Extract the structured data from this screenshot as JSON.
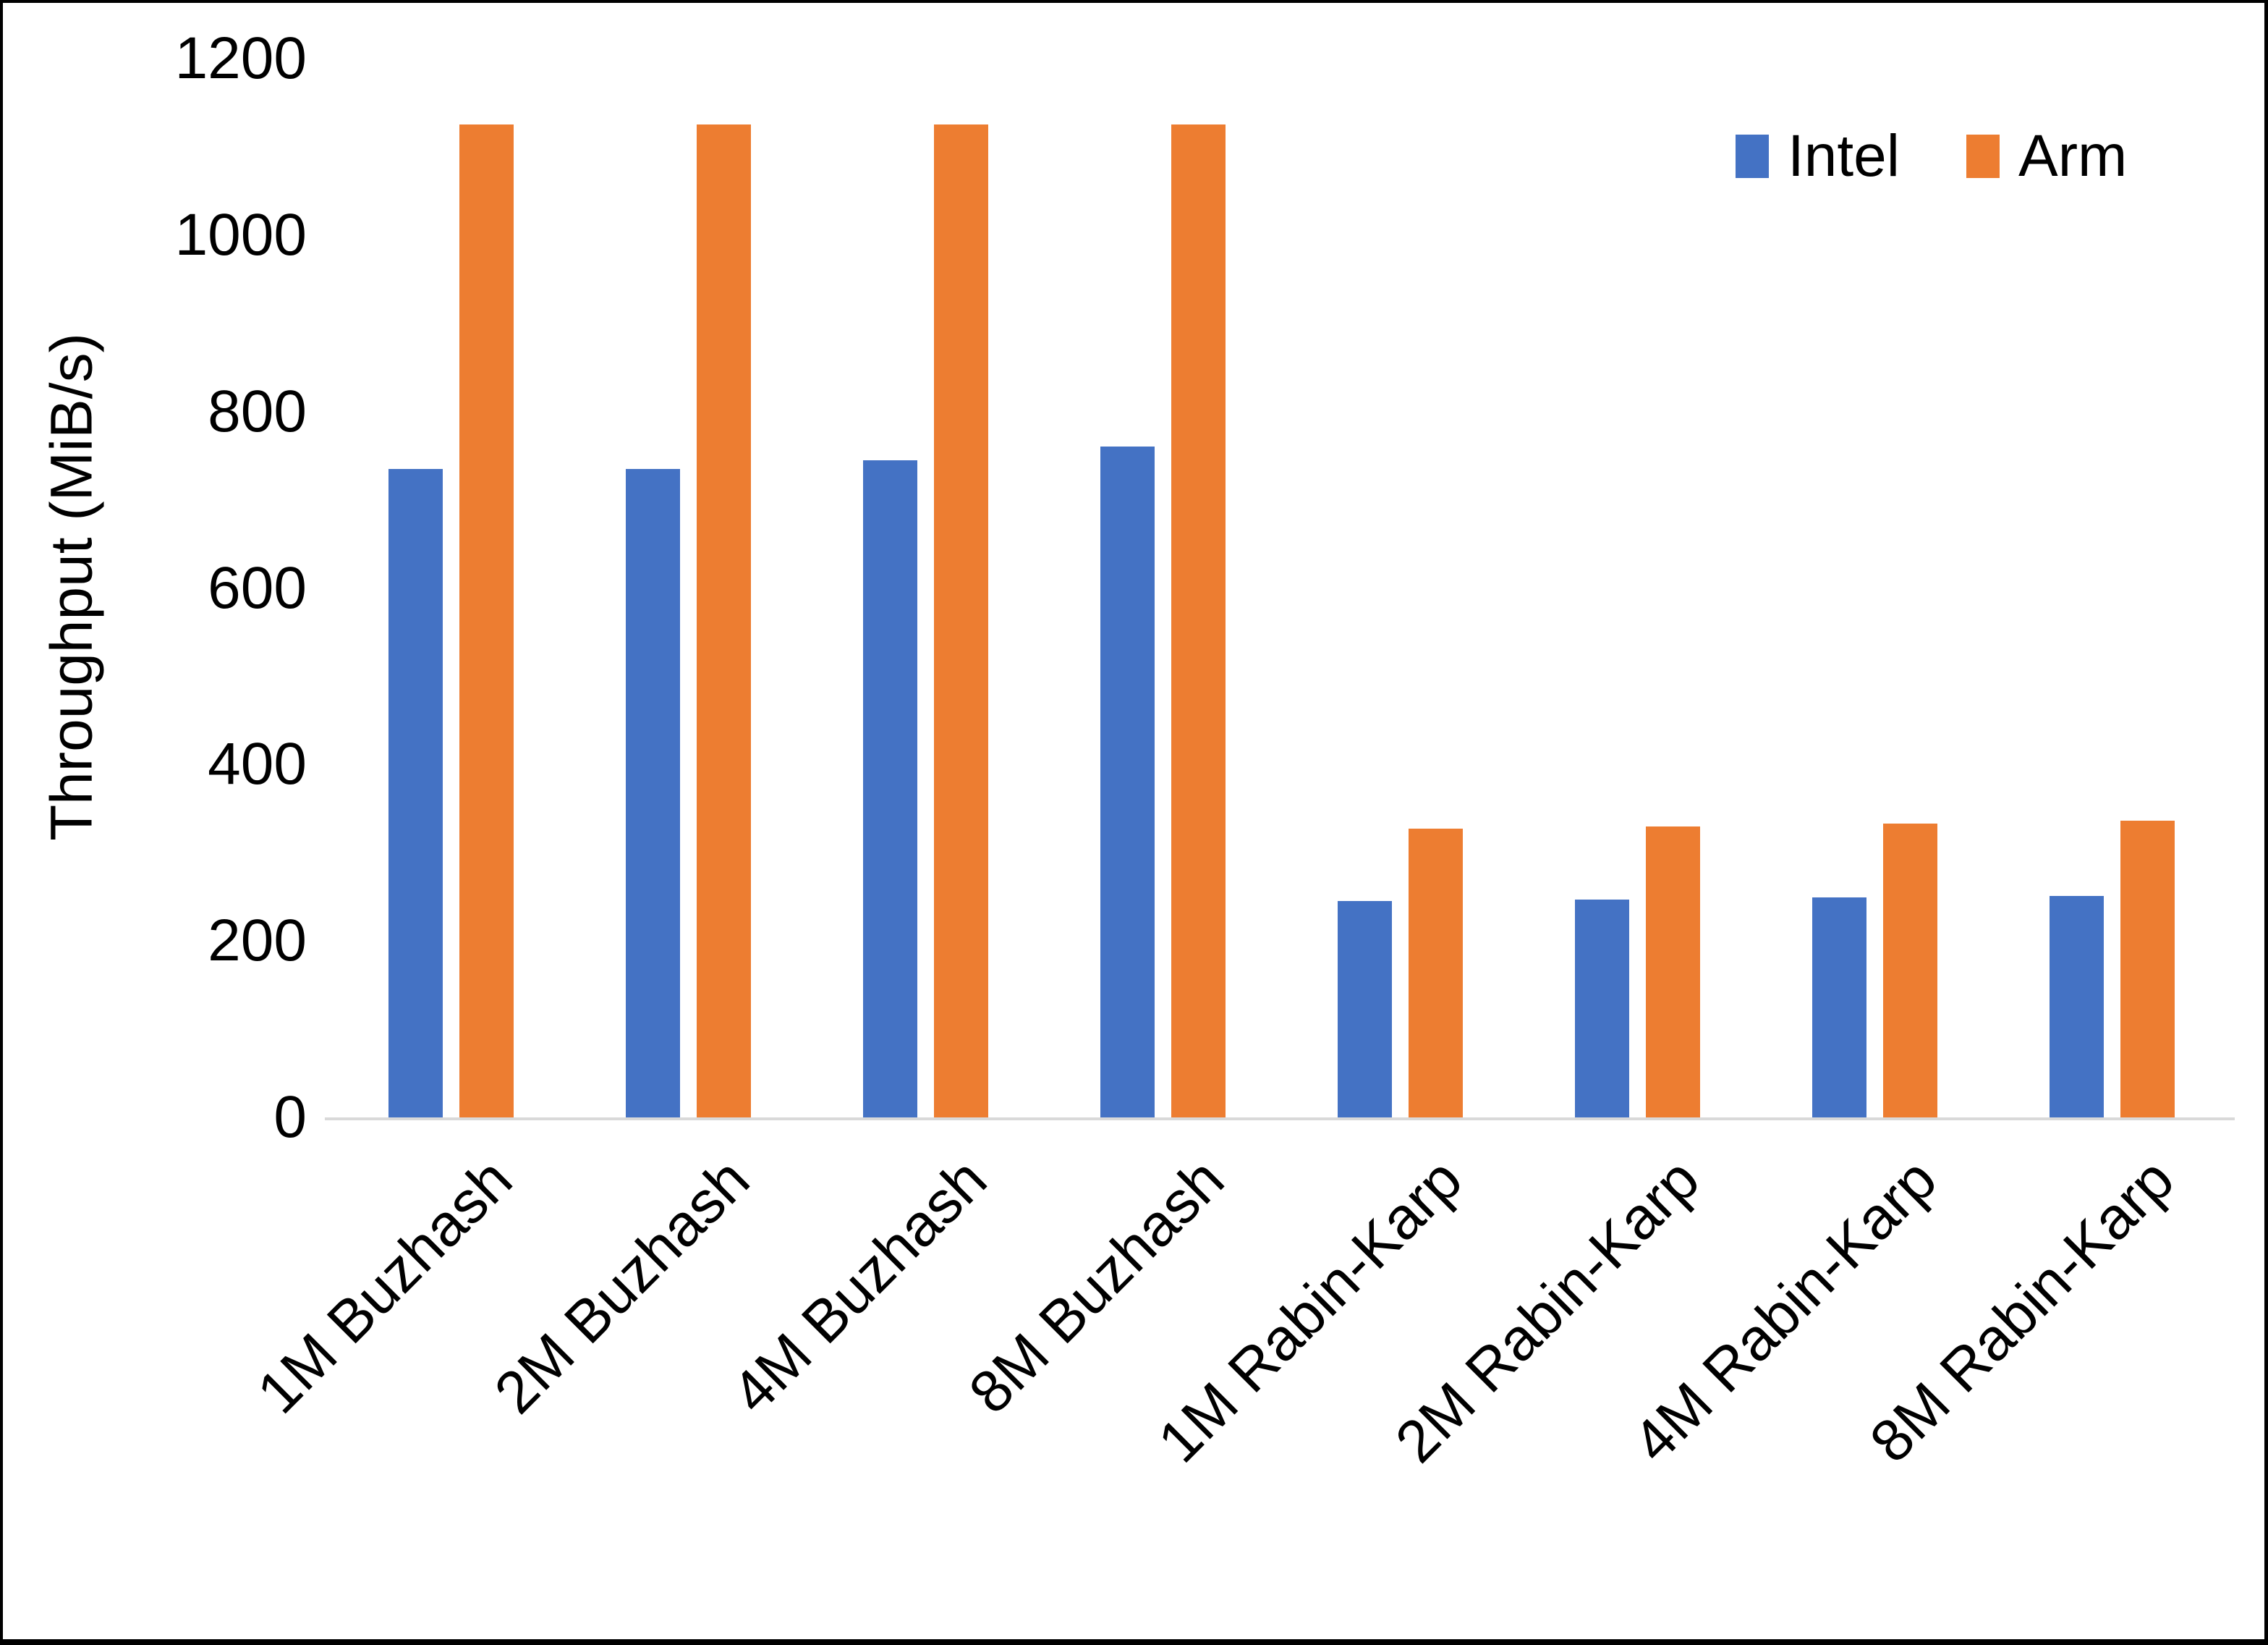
{
  "figure": {
    "background": "#ffffff",
    "frame_color": "#000000",
    "axis_line_color": "#d9d9d9",
    "text_color": "#000000"
  },
  "chart_data": {
    "type": "bar",
    "title": "",
    "xlabel": "",
    "ylabel": "Throughput (MiB/s)",
    "ylim": [
      0,
      1200
    ],
    "yticks": [
      0,
      200,
      400,
      600,
      800,
      1000,
      1200
    ],
    "grid": false,
    "legend_position": "top-right",
    "categories": [
      "1M Buzhash",
      "2M Buzhash",
      "4M Buzhash",
      "8M Buzhash",
      "1M Rabin-Karp",
      "2M Rabin-Karp",
      "4M Rabin-Karp",
      "8M Rabin-Karp"
    ],
    "series": [
      {
        "name": "Intel",
        "color": "#4472c4",
        "values": [
          735,
          735,
          745,
          760,
          245,
          247,
          249,
          251
        ]
      },
      {
        "name": "Arm",
        "color": "#ed7d31",
        "values": [
          1125,
          1125,
          1125,
          1125,
          327,
          330,
          333,
          336
        ]
      }
    ]
  }
}
